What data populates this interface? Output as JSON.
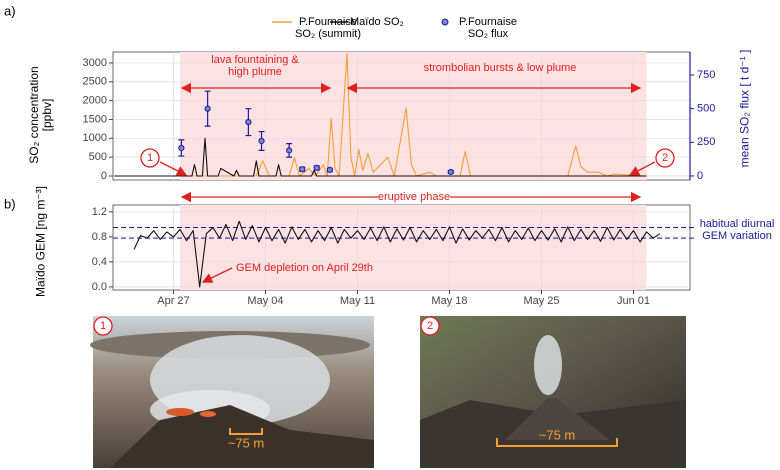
{
  "chart_data": [
    {
      "type": "line",
      "panel_label": "a)",
      "y_label": "SO₂ concentration [ppbv]",
      "y2_label": "mean SO₂ flux [ t d⁻¹ ]",
      "xlim": [
        22.4,
        66.3
      ],
      "xticks": [
        27,
        34,
        41,
        48,
        55,
        62
      ],
      "ylim": [
        -106,
        3290
      ],
      "yticks": [
        0,
        500,
        1000,
        1500,
        2000,
        2500,
        3000
      ],
      "y2lim": [
        -30,
        921
      ],
      "y2ticks": [
        0,
        250,
        500,
        750
      ],
      "grid": true,
      "shade": [
        27.5,
        63
      ],
      "series": [
        {
          "name": "P.Fournaise SO₂ (summit)",
          "color": "#f5a030",
          "type": "line",
          "x": [
            22.5,
            27,
            30,
            32,
            33.3,
            33.8,
            34.3,
            35.8,
            36.2,
            36.6,
            37.3,
            37.8,
            38.4,
            38.7,
            39.0,
            39.3,
            39.6,
            40.2,
            40.5,
            40.8,
            41.1,
            41.4,
            41.8,
            42.2,
            43.3,
            43.8,
            44.7,
            45.1,
            45.5,
            46.5,
            47,
            48.8,
            49.2,
            49.6,
            50.5,
            57,
            57.6,
            58,
            58.5,
            59.3,
            60,
            60.5,
            63
          ],
          "values": [
            0,
            0,
            0,
            0,
            0,
            400,
            0,
            0,
            480,
            0,
            200,
            0,
            300,
            0,
            1530,
            200,
            0,
            3250,
            500,
            0,
            700,
            150,
            600,
            100,
            500,
            0,
            1800,
            300,
            0,
            100,
            0,
            0,
            650,
            0,
            0,
            0,
            800,
            250,
            100,
            100,
            0,
            50,
            0
          ]
        },
        {
          "name": "Maïdo SO₂",
          "color": "#111111",
          "type": "line",
          "x": [
            22.5,
            28.4,
            28.6,
            28.8,
            29.2,
            29.4,
            29.6,
            30.4,
            30.6,
            31.6,
            31.8,
            32,
            33.1,
            33.3,
            33.5,
            34.8,
            35,
            35.2,
            37.5,
            37.7,
            37.9,
            41,
            63
          ],
          "values": [
            0,
            0,
            300,
            0,
            0,
            1000,
            0,
            0,
            200,
            0,
            150,
            0,
            0,
            400,
            0,
            0,
            300,
            0,
            0,
            150,
            0,
            0,
            0
          ]
        },
        {
          "name": "P.Fournaise SO₂ flux",
          "color": "#1a1aa0",
          "type": "errorbar",
          "axis": "y2",
          "x": [
            27.6,
            29.6,
            32.7,
            33.7,
            35.8,
            36.8,
            37.9,
            38.9,
            48.1
          ],
          "values": [
            208,
            500,
            400,
            260,
            190,
            50,
            60,
            45,
            30
          ],
          "errors": [
            60,
            130,
            100,
            70,
            50,
            15,
            15,
            12,
            10
          ]
        }
      ]
    },
    {
      "type": "line",
      "panel_label": "b)",
      "y_label": "Maïdo GEM [ng m⁻³]",
      "xlim": [
        22.4,
        66.3
      ],
      "xticks": [
        {
          "value": 27,
          "label": "Apr 27"
        },
        {
          "value": 34,
          "label": "May 04"
        },
        {
          "value": 41,
          "label": "May 11"
        },
        {
          "value": 48,
          "label": "May 18"
        },
        {
          "value": 55,
          "label": "May 25"
        },
        {
          "value": 62,
          "label": "Jun 01"
        }
      ],
      "ylim": [
        -0.05,
        1.31
      ],
      "yticks": [
        {
          "value": 0,
          "label": "0.0"
        },
        0.4,
        0.8,
        1.2
      ],
      "grid": true,
      "shade": [
        27.5,
        63
      ],
      "hlines": [
        0.95,
        0.78
      ],
      "hline_color": "#1a1aa0",
      "series": [
        {
          "color": "#111111",
          "type": "line",
          "x": [
            24,
            24.5,
            25,
            25.5,
            26,
            26.5,
            27,
            27.5,
            28,
            28.5,
            29,
            29.5,
            30,
            30.5,
            31,
            31.5,
            32,
            32.5,
            33,
            33.5,
            34,
            34.5,
            35,
            35.5,
            36,
            36.5,
            37,
            37.5,
            38,
            38.5,
            39,
            39.5,
            40,
            40.5,
            41,
            41.5,
            42,
            42.5,
            43,
            43.5,
            44,
            44.5,
            45,
            45.5,
            46,
            46.5,
            47,
            47.5,
            48,
            48.5,
            49,
            49.5,
            50,
            50.5,
            51,
            51.5,
            52,
            52.5,
            53,
            53.5,
            54,
            54.5,
            55,
            55.5,
            56,
            56.5,
            57,
            57.5,
            58,
            58.5,
            59,
            59.5,
            60,
            60.5,
            61,
            61.5,
            62,
            62.5,
            63,
            63.5,
            64
          ],
          "values": [
            0.6,
            0.82,
            0.78,
            0.9,
            0.76,
            0.88,
            0.8,
            0.92,
            0.74,
            0.9,
            0.0,
            0.85,
            0.95,
            0.78,
            1.0,
            0.74,
            1.05,
            0.76,
            0.98,
            0.72,
            0.95,
            0.74,
            0.92,
            0.7,
            0.96,
            0.76,
            0.92,
            0.72,
            0.9,
            0.74,
            0.95,
            0.7,
            0.92,
            0.78,
            0.9,
            0.76,
            0.94,
            0.74,
            0.96,
            0.72,
            0.93,
            0.75,
            0.95,
            0.72,
            0.9,
            0.76,
            0.92,
            0.74,
            0.96,
            0.7,
            0.93,
            0.75,
            0.9,
            0.78,
            0.92,
            0.74,
            0.95,
            0.72,
            0.9,
            0.76,
            0.94,
            0.74,
            0.9,
            0.75,
            0.93,
            0.72,
            0.96,
            0.74,
            0.92,
            0.76,
            0.9,
            0.73,
            0.95,
            0.75,
            0.92,
            0.76,
            0.9,
            0.72,
            0.88,
            0.78,
            0.85
          ]
        }
      ]
    }
  ],
  "annotations": {
    "fountaining": "lava fountaining & high plume",
    "strombolian": "strombolian bursts & low plume",
    "eruptive": "eruptive phase",
    "depletion": "GEM depletion on April 29th",
    "diurnal": "habitual diurnal GEM variation"
  },
  "photos": [
    {
      "number": "1",
      "scale_label": "~75 m"
    },
    {
      "number": "2",
      "scale_label": "~75 m"
    }
  ]
}
